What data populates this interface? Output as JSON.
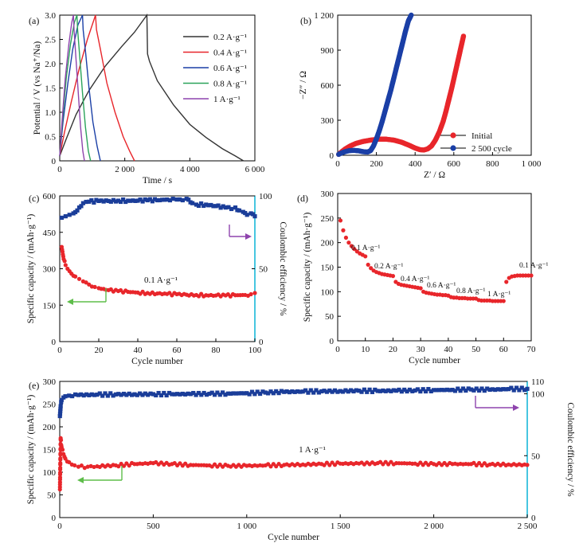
{
  "colors": {
    "black": "#333333",
    "red": "#e8262b",
    "blue": "#1a3fa6",
    "navy": "#1a3d99",
    "green": "#2aa35a",
    "purple": "#8e44ad",
    "cyan": "#19b7d9",
    "arrow_green": "#5ebd4a"
  },
  "chart_data": [
    {
      "panel": "(a)",
      "type": "line",
      "xlabel": "Time / s",
      "ylabel": "Potential / V (vs Na⁺/Na)",
      "xlim": [
        0,
        6000
      ],
      "ylim": [
        0,
        3.0
      ],
      "xticks": [
        "0",
        "2 000",
        "4 000",
        "6 000"
      ],
      "yticks": [
        "0",
        "0.5",
        "1.0",
        "1.5",
        "2.0",
        "2.5",
        "3.0"
      ],
      "legend": [
        "0.2 A·g⁻¹",
        "0.4 A·g⁻¹",
        "0.6 A·g⁻¹",
        "0.8 A·g⁻¹",
        "1 A·g⁻¹"
      ],
      "legend_position": "right",
      "series": [
        {
          "name": "0.2 A·g⁻¹",
          "color": "#333333",
          "x": [
            0,
            200,
            500,
            900,
            1400,
            1900,
            2300,
            2680,
            2700,
            2760,
            3000,
            3500,
            4000,
            4500,
            5000,
            5400,
            5650
          ],
          "y": [
            0.1,
            0.45,
            0.95,
            1.45,
            1.95,
            2.35,
            2.65,
            3.0,
            2.2,
            2.05,
            1.65,
            1.15,
            0.75,
            0.48,
            0.25,
            0.1,
            0.0
          ]
        },
        {
          "name": "0.4 A·g⁻¹",
          "color": "#e8262b",
          "x": [
            0,
            150,
            350,
            600,
            850,
            1100,
            1130,
            1250,
            1450,
            1700,
            1950,
            2150,
            2300
          ],
          "y": [
            0.1,
            0.6,
            1.2,
            1.9,
            2.5,
            3.0,
            2.7,
            2.3,
            1.6,
            1.0,
            0.5,
            0.2,
            0.0
          ]
        },
        {
          "name": "0.6 A·g⁻¹",
          "color": "#1a3fa6",
          "x": [
            0,
            100,
            250,
            400,
            560,
            700,
            720,
            800,
            900,
            1020,
            1150,
            1250
          ],
          "y": [
            0.1,
            0.8,
            1.6,
            2.3,
            2.8,
            3.0,
            2.7,
            2.2,
            1.5,
            0.8,
            0.3,
            0.0
          ]
        },
        {
          "name": "0.8 A·g⁻¹",
          "color": "#2aa35a",
          "x": [
            0,
            80,
            200,
            330,
            450,
            530,
            550,
            620,
            700,
            790,
            880,
            950
          ],
          "y": [
            0.1,
            0.8,
            1.7,
            2.4,
            2.85,
            3.0,
            2.7,
            2.1,
            1.4,
            0.7,
            0.2,
            0.0
          ]
        },
        {
          "name": "1 A·g⁻¹",
          "color": "#8e44ad",
          "x": [
            0,
            70,
            170,
            280,
            370,
            420,
            440,
            500,
            570,
            640,
            710,
            760
          ],
          "y": [
            0.1,
            0.8,
            1.7,
            2.4,
            2.85,
            3.0,
            2.7,
            2.1,
            1.4,
            0.7,
            0.2,
            0.0
          ]
        }
      ]
    },
    {
      "panel": "(b)",
      "type": "scatter",
      "xlabel": "Z′ / Ω",
      "ylabel": "−Z″ / Ω",
      "xlim": [
        0,
        1000
      ],
      "ylim": [
        0,
        1200
      ],
      "xticks": [
        "0",
        "200",
        "400",
        "600",
        "800",
        "1 000"
      ],
      "yticks": [
        "0",
        "300",
        "600",
        "900",
        "1 200"
      ],
      "legend": [
        "Initial",
        "2 500 cycle"
      ],
      "legend_position": "bottom-right",
      "series": [
        {
          "name": "Initial",
          "color": "#e8262b",
          "x": [
            5,
            20,
            40,
            65,
            95,
            130,
            170,
            210,
            250,
            290,
            330,
            370,
            400,
            425,
            445,
            465,
            485,
            505,
            525,
            545,
            560,
            575,
            590,
            605,
            620,
            635,
            650
          ],
          "y": [
            8,
            30,
            55,
            80,
            102,
            118,
            130,
            138,
            138,
            130,
            112,
            85,
            62,
            48,
            45,
            55,
            80,
            130,
            200,
            290,
            380,
            480,
            580,
            690,
            800,
            910,
            1020
          ]
        },
        {
          "name": "2 500 cycle",
          "color": "#1a3fa6",
          "x": [
            5,
            20,
            40,
            60,
            85,
            110,
            135,
            155,
            170,
            185,
            200,
            215,
            230,
            245,
            260,
            275,
            290,
            305,
            320,
            335,
            350,
            365,
            380
          ],
          "y": [
            8,
            20,
            32,
            40,
            42,
            38,
            30,
            28,
            40,
            80,
            140,
            210,
            290,
            380,
            470,
            560,
            660,
            760,
            860,
            960,
            1060,
            1150,
            1200
          ]
        }
      ]
    },
    {
      "panel": "(c)",
      "type": "scatter",
      "xlabel": "Cycle number",
      "ylabel": "Specific capacity / (mAh·g⁻¹)",
      "ylabel_right": "Coulombic efficiency / %",
      "xlim": [
        0,
        100
      ],
      "ylim": [
        0,
        600
      ],
      "ylim_right": [
        0,
        100
      ],
      "xticks": [
        "0",
        "20",
        "40",
        "60",
        "80",
        "100"
      ],
      "yticks": [
        "0",
        "150",
        "300",
        "450",
        "600"
      ],
      "yticks_right": [
        "0",
        "50",
        "100"
      ],
      "annotation": "0.1 A·g⁻¹",
      "series": [
        {
          "name": "Specific capacity",
          "color": "#e8262b",
          "axis": "left",
          "x": [
            1,
            2,
            3,
            4,
            5,
            6,
            8,
            10,
            12,
            15,
            18,
            20,
            25,
            30,
            35,
            40,
            45,
            50,
            55,
            60,
            65,
            70,
            75,
            80,
            85,
            90,
            95,
            98,
            100
          ],
          "y": [
            390,
            340,
            315,
            300,
            290,
            280,
            268,
            258,
            248,
            235,
            225,
            220,
            212,
            208,
            205,
            202,
            200,
            198,
            196,
            195,
            193,
            192,
            191,
            190,
            190,
            191,
            192,
            195,
            200
          ]
        },
        {
          "name": "Coulombic efficiency",
          "color": "#1a3d99",
          "axis": "right",
          "x": [
            1,
            3,
            5,
            7,
            9,
            10,
            12,
            15,
            20,
            25,
            30,
            35,
            40,
            45,
            50,
            55,
            58,
            60,
            63,
            65,
            68,
            70,
            75,
            80,
            85,
            88,
            90,
            92,
            94,
            96,
            98,
            100
          ],
          "y": [
            85,
            86,
            87,
            88,
            90,
            92,
            95,
            96,
            96.5,
            96.5,
            96.7,
            96.7,
            96.7,
            97,
            97,
            97.5,
            98,
            97.5,
            97,
            98,
            95,
            94,
            94,
            93,
            92,
            91,
            92,
            90,
            89,
            87,
            88,
            86
          ]
        }
      ]
    },
    {
      "panel": "(d)",
      "type": "scatter",
      "xlabel": "Cycle number",
      "ylabel": "Specific capacity / (mAh·g⁻¹)",
      "xlim": [
        0,
        70
      ],
      "ylim": [
        0,
        300
      ],
      "xticks": [
        "0",
        "10",
        "20",
        "30",
        "40",
        "50",
        "60",
        "70"
      ],
      "yticks": [
        "0",
        "50",
        "100",
        "150",
        "200",
        "250",
        "300"
      ],
      "annotations": [
        "0.1 A·g⁻¹",
        "0.2 A·g⁻¹",
        "0.4 A·g⁻¹",
        "0.6 A·g⁻¹",
        "0.8 A·g⁻¹",
        "1 A·g⁻¹",
        "0.1 A·g⁻¹"
      ],
      "series": [
        {
          "name": "Rate capability",
          "color": "#e8262b",
          "x": [
            1,
            2,
            3,
            4,
            5,
            6,
            7,
            8,
            9,
            10,
            11,
            12,
            13,
            14,
            15,
            16,
            17,
            18,
            19,
            20,
            21,
            22,
            23,
            24,
            25,
            26,
            27,
            28,
            29,
            30,
            31,
            32,
            33,
            34,
            35,
            36,
            37,
            38,
            39,
            40,
            41,
            42,
            43,
            44,
            45,
            46,
            47,
            48,
            49,
            50,
            51,
            52,
            53,
            54,
            55,
            56,
            57,
            58,
            59,
            60,
            61,
            62,
            63,
            64,
            65,
            66,
            67,
            68,
            69,
            70
          ],
          "y": [
            245,
            225,
            210,
            200,
            193,
            187,
            182,
            178,
            175,
            172,
            155,
            148,
            143,
            140,
            138,
            136,
            135,
            134,
            133,
            132,
            120,
            116,
            114,
            113,
            112,
            111,
            110,
            109,
            108,
            107,
            100,
            98,
            97,
            96,
            95,
            94,
            94,
            93,
            93,
            92,
            89,
            88,
            88,
            87,
            87,
            87,
            86,
            86,
            86,
            86,
            83,
            82,
            82,
            82,
            82,
            81,
            81,
            81,
            81,
            81,
            120,
            128,
            131,
            132,
            133,
            133,
            133,
            133,
            133,
            133
          ]
        }
      ]
    },
    {
      "panel": "(e)",
      "type": "scatter",
      "xlabel": "Cycle number",
      "ylabel": "Specific capacity / (mAh·g⁻¹)",
      "ylabel_right": "Coulombic efficiency / %",
      "xlim": [
        0,
        2500
      ],
      "ylim": [
        0,
        300
      ],
      "ylim_right": [
        0,
        110
      ],
      "xticks": [
        "0",
        "500",
        "1 000",
        "1 500",
        "2 000",
        "2 500"
      ],
      "yticks": [
        "0",
        "50",
        "100",
        "150",
        "200",
        "250",
        "300"
      ],
      "yticks_right": [
        "0",
        "50",
        "100",
        "110"
      ],
      "annotation": "1 A·g⁻¹",
      "series": [
        {
          "name": "Specific capacity",
          "color": "#e8262b",
          "axis": "left",
          "x": [
            1,
            5,
            10,
            20,
            30,
            50,
            80,
            100,
            150,
            200,
            300,
            400,
            500,
            600,
            700,
            800,
            900,
            1000,
            1100,
            1200,
            1300,
            1400,
            1500,
            1600,
            1700,
            1800,
            1900,
            2000,
            2100,
            2200,
            2300,
            2400,
            2500
          ],
          "y": [
            62,
            175,
            155,
            140,
            130,
            122,
            115,
            112,
            112,
            113,
            115,
            118,
            120,
            118,
            116,
            115,
            114,
            114,
            115,
            116,
            117,
            118,
            119,
            119,
            120,
            120,
            119,
            118,
            118,
            118,
            117,
            117,
            116
          ]
        },
        {
          "name": "Coulombic efficiency",
          "color": "#1a3d99",
          "axis": "right",
          "x": [
            1,
            5,
            10,
            20,
            30,
            50,
            100,
            200,
            300,
            400,
            500,
            600,
            700,
            800,
            900,
            1000,
            1100,
            1200,
            1300,
            1400,
            1500,
            1600,
            1700,
            1800,
            1900,
            2000,
            2100,
            2200,
            2300,
            2400,
            2500
          ],
          "y": [
            82,
            90,
            95,
            97,
            98,
            98.5,
            99,
            99.3,
            99.5,
            99.6,
            99.7,
            99.7,
            99.8,
            100,
            100.2,
            100.5,
            101,
            101.5,
            101.8,
            102,
            102.2,
            102.5,
            102.3,
            102.5,
            102.7,
            103,
            103.2,
            103.5,
            103.3,
            103.8,
            104
          ]
        }
      ]
    }
  ]
}
